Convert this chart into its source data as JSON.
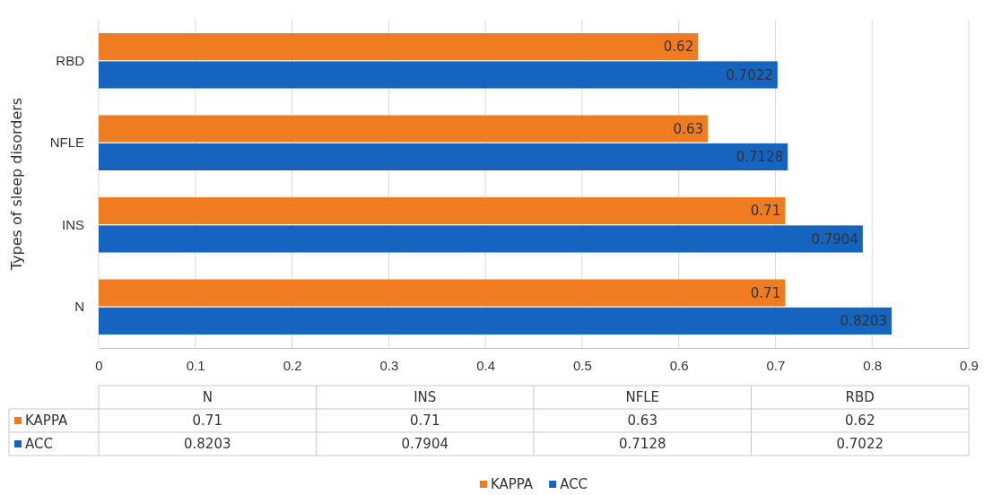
{
  "chart_data": {
    "type": "bar",
    "orientation": "horizontal",
    "ylabel": "Types of sleep disorders",
    "categories": [
      "RBD",
      "NFLE",
      "INS",
      "N"
    ],
    "series": [
      {
        "name": "KAPPA",
        "color": "#f07c22",
        "values": [
          0.62,
          0.63,
          0.71,
          0.71
        ],
        "value_labels": [
          "0.62",
          "0.63",
          "0.71",
          "0.71"
        ]
      },
      {
        "name": "ACC",
        "color": "#1565c0",
        "values": [
          0.7022,
          0.7128,
          0.7904,
          0.8203
        ],
        "value_labels": [
          "0.7022",
          "0.7128",
          "0.7904",
          "0.8203"
        ]
      }
    ],
    "xlim": [
      0,
      0.9
    ],
    "xticks": [
      0,
      0.1,
      0.2,
      0.3,
      0.4,
      0.5,
      0.6,
      0.7,
      0.8,
      0.9
    ],
    "grid": "x",
    "legend": "bottom",
    "annotations": [
      "0.71",
      "0.71",
      "0.63",
      "0.62",
      "0.8203",
      "0.7904",
      "0.7128",
      "0.7022"
    ]
  }
}
